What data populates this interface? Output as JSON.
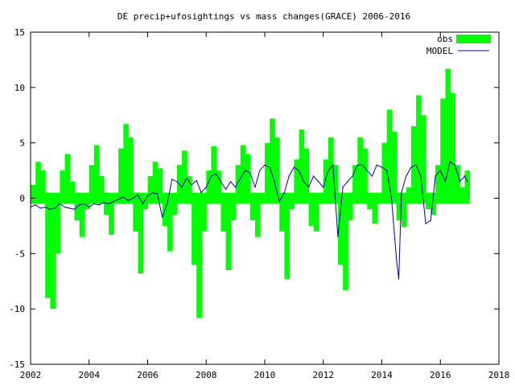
{
  "chart_data": {
    "type": "bar",
    "title": "DE precip+ufosightings vs mass changes(GRACE) 2006-2016",
    "xlabel": "",
    "ylabel": "",
    "xlim": [
      2002,
      2018
    ],
    "ylim": [
      -15,
      15
    ],
    "xticks": [
      2002,
      2004,
      2006,
      2008,
      2010,
      2012,
      2014,
      2016,
      2018
    ],
    "yticks": [
      -15,
      -10,
      -5,
      0,
      5,
      10,
      15
    ],
    "grid": false,
    "legend_position": "top-right",
    "colors": {
      "obs": "#00ff00",
      "model": "#0000a0",
      "zero_band": "#00ff00"
    },
    "series": [
      {
        "name": "obs",
        "style": "bars",
        "x": [
          2002.0,
          2002.17,
          2002.33,
          2002.5,
          2002.67,
          2002.83,
          2003.0,
          2003.17,
          2003.33,
          2003.5,
          2003.67,
          2003.83,
          2004.0,
          2004.17,
          2004.33,
          2004.5,
          2004.67,
          2004.83,
          2005.0,
          2005.17,
          2005.33,
          2005.5,
          2005.67,
          2005.83,
          2006.0,
          2006.17,
          2006.33,
          2006.5,
          2006.67,
          2006.83,
          2007.0,
          2007.17,
          2007.33,
          2007.5,
          2007.67,
          2007.83,
          2008.0,
          2008.17,
          2008.33,
          2008.5,
          2008.67,
          2008.83,
          2009.0,
          2009.17,
          2009.33,
          2009.5,
          2009.67,
          2009.83,
          2010.0,
          2010.17,
          2010.33,
          2010.5,
          2010.67,
          2010.83,
          2011.0,
          2011.17,
          2011.33,
          2011.5,
          2011.67,
          2011.83,
          2012.0,
          2012.17,
          2012.33,
          2012.5,
          2012.67,
          2012.83,
          2013.0,
          2013.17,
          2013.33,
          2013.5,
          2013.67,
          2013.83,
          2014.0,
          2014.17,
          2014.33,
          2014.5,
          2014.67,
          2014.83,
          2015.0,
          2015.17,
          2015.33,
          2015.5,
          2015.67,
          2015.83,
          2016.0,
          2016.17,
          2016.33,
          2016.5,
          2016.67,
          2016.83
        ],
        "values": [
          1.2,
          3.3,
          2.5,
          -9.0,
          -10.0,
          -5.0,
          2.5,
          4.0,
          1.5,
          -2.0,
          -3.5,
          -1.0,
          3.0,
          4.8,
          2.0,
          -1.5,
          -3.3,
          0.5,
          4.5,
          6.7,
          5.5,
          -3.0,
          -6.8,
          -1.0,
          2.0,
          3.3,
          2.7,
          -2.5,
          -4.8,
          -1.5,
          3.0,
          4.3,
          2.0,
          -6.0,
          -10.8,
          -3.0,
          2.5,
          4.7,
          2.5,
          -3.0,
          -6.5,
          -2.0,
          3.0,
          4.8,
          4.0,
          -2.0,
          -3.5,
          -0.5,
          5.0,
          7.2,
          5.5,
          -3.0,
          -7.3,
          -1.0,
          3.5,
          6.2,
          4.5,
          -2.5,
          -3.0,
          -0.5,
          3.5,
          5.5,
          3.0,
          -6.0,
          -8.3,
          -2.0,
          3.0,
          5.5,
          4.5,
          -1.0,
          -2.3,
          0.5,
          5.0,
          8.0,
          6.0,
          -2.0,
          -2.6,
          1.0,
          6.5,
          9.3,
          7.5,
          -1.0,
          -1.5,
          3.0,
          9.0,
          11.7,
          9.5,
          3.0,
          1.0,
          2.5
        ]
      },
      {
        "name": "MODEL",
        "style": "lines",
        "x": [
          2002.0,
          2002.17,
          2002.33,
          2002.5,
          2002.67,
          2002.83,
          2003.0,
          2003.17,
          2003.33,
          2003.5,
          2003.67,
          2003.83,
          2004.0,
          2004.17,
          2004.33,
          2004.5,
          2004.67,
          2004.83,
          2005.0,
          2005.17,
          2005.33,
          2005.5,
          2005.67,
          2005.83,
          2006.0,
          2006.17,
          2006.33,
          2006.5,
          2006.67,
          2006.83,
          2007.0,
          2007.17,
          2007.33,
          2007.5,
          2007.67,
          2007.83,
          2008.0,
          2008.17,
          2008.33,
          2008.5,
          2008.67,
          2008.83,
          2009.0,
          2009.17,
          2009.33,
          2009.5,
          2009.67,
          2009.83,
          2010.0,
          2010.17,
          2010.33,
          2010.5,
          2010.67,
          2010.83,
          2011.0,
          2011.17,
          2011.33,
          2011.5,
          2011.67,
          2011.83,
          2012.0,
          2012.17,
          2012.33,
          2012.5,
          2012.67,
          2012.83,
          2013.0,
          2013.17,
          2013.33,
          2013.5,
          2013.67,
          2013.83,
          2014.0,
          2014.17,
          2014.33,
          2014.5,
          2014.58,
          2014.67,
          2014.83,
          2015.0,
          2015.17,
          2015.33,
          2015.5,
          2015.67,
          2015.83,
          2016.0,
          2016.17,
          2016.33,
          2016.5,
          2016.67,
          2016.83,
          2016.92
        ],
        "values": [
          -0.8,
          -0.6,
          -0.9,
          -0.8,
          -1.0,
          -0.9,
          -0.5,
          -0.8,
          -0.9,
          -1.0,
          -0.6,
          -0.5,
          -0.8,
          -0.5,
          -0.6,
          -0.4,
          -0.5,
          -0.3,
          -0.1,
          0.1,
          -0.2,
          0.0,
          0.3,
          -0.5,
          0.2,
          0.5,
          0.4,
          -1.7,
          -0.5,
          1.7,
          1.5,
          1.0,
          1.8,
          1.2,
          1.6,
          0.5,
          1.0,
          2.0,
          2.2,
          1.5,
          0.8,
          1.5,
          1.0,
          1.8,
          2.5,
          2.3,
          1.0,
          2.5,
          3.0,
          2.8,
          1.5,
          -0.3,
          0.5,
          2.0,
          2.8,
          2.5,
          1.5,
          1.0,
          2.0,
          1.5,
          1.0,
          2.5,
          3.0,
          -3.5,
          1.0,
          1.5,
          2.0,
          3.0,
          3.0,
          2.5,
          2.0,
          3.0,
          2.8,
          2.5,
          0.0,
          -5.5,
          -7.3,
          0.5,
          2.0,
          2.8,
          3.0,
          2.0,
          -2.3,
          -2.0,
          2.0,
          2.5,
          1.5,
          3.3,
          3.0,
          1.5,
          2.0,
          1.5
        ]
      }
    ]
  }
}
